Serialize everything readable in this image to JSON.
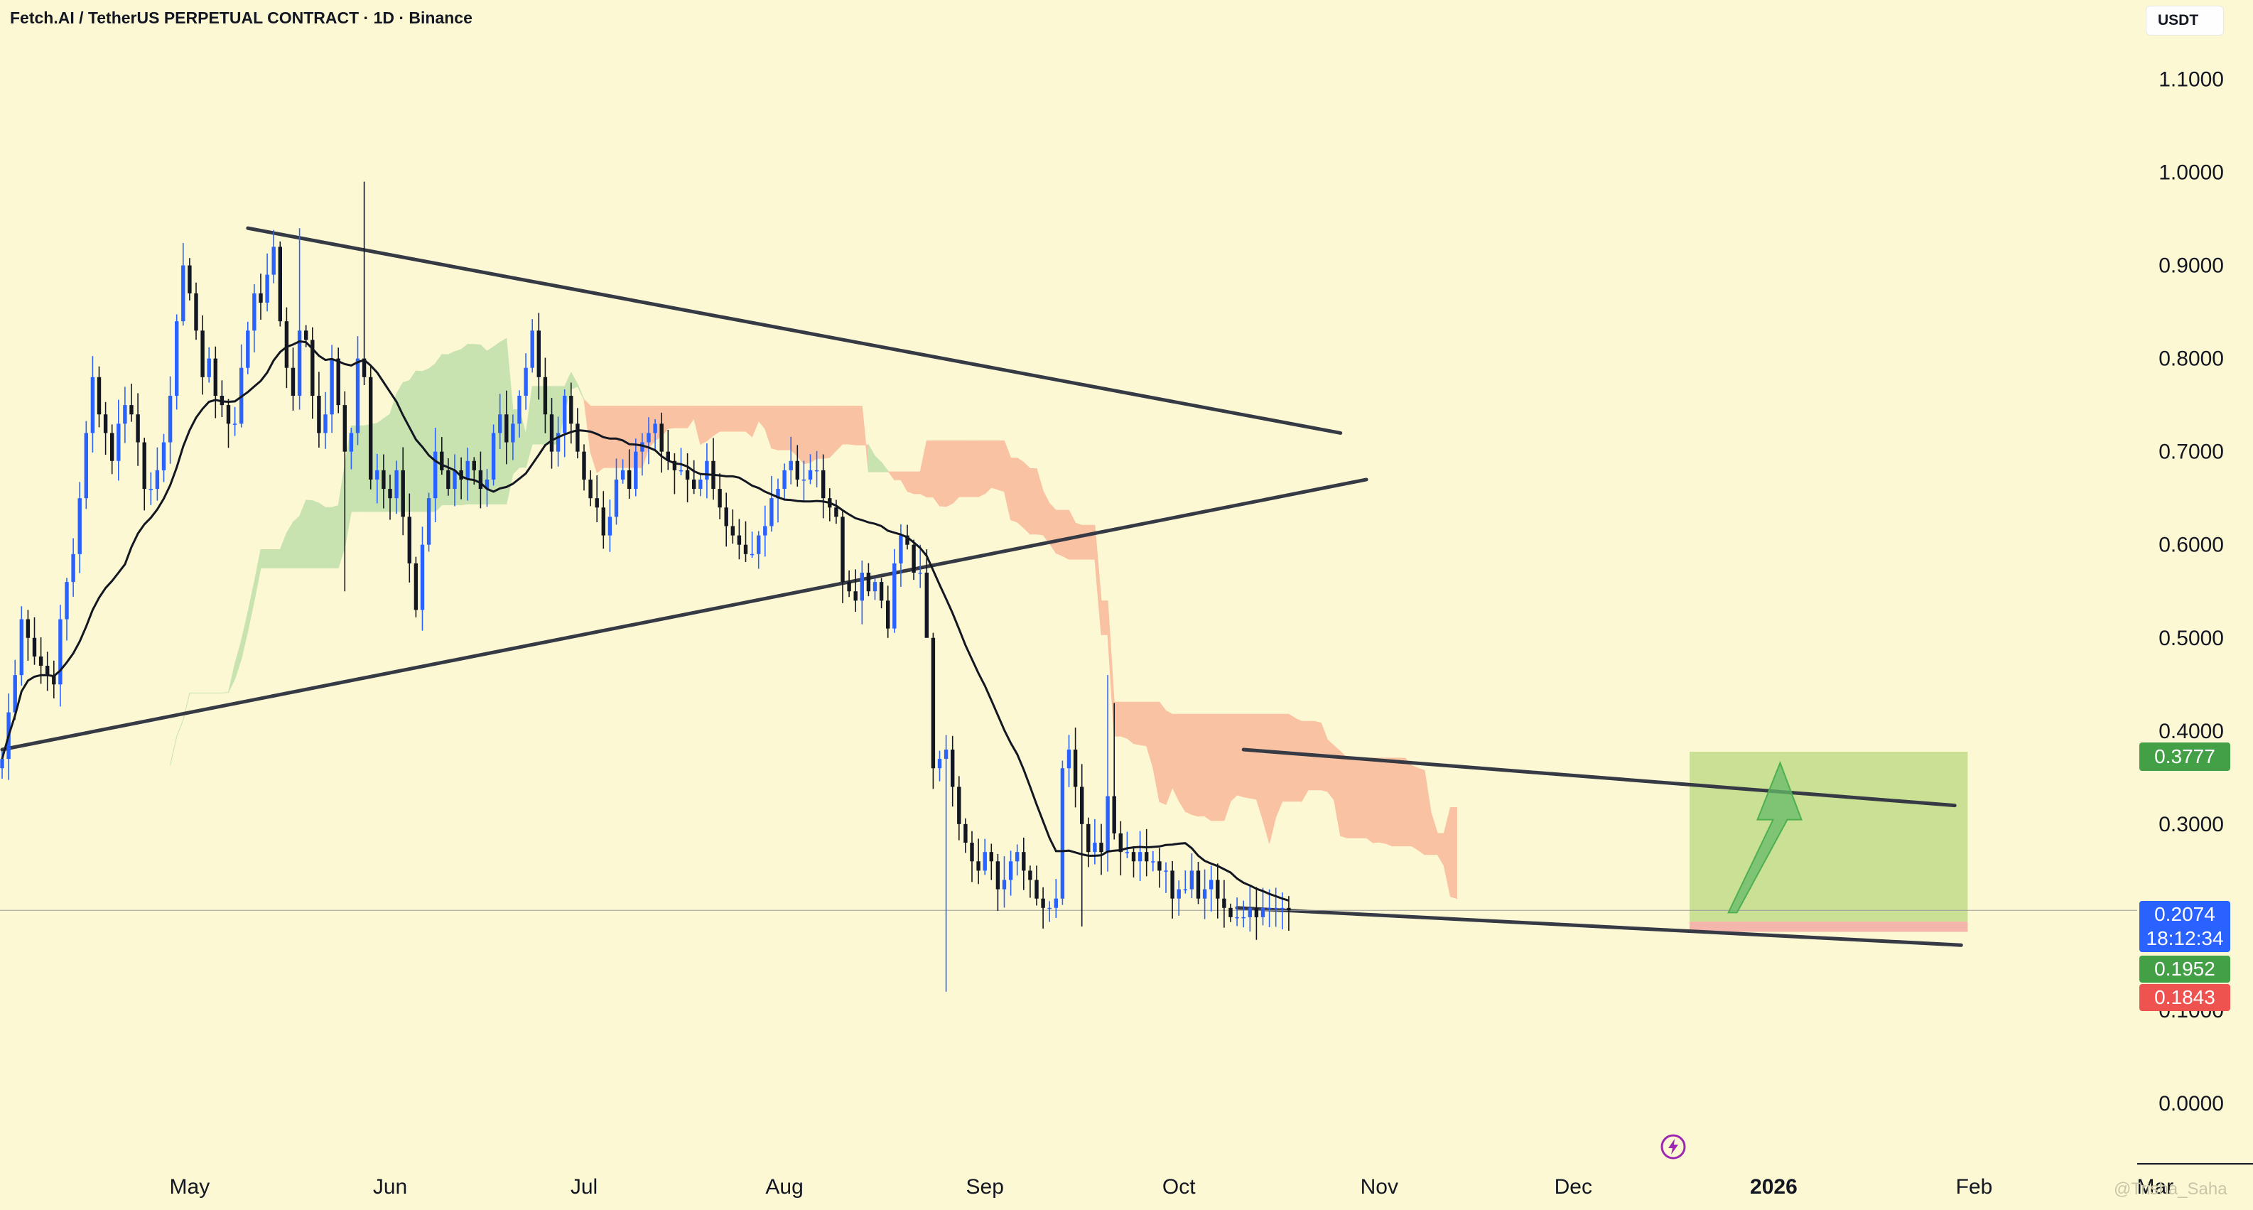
{
  "header": {
    "title": "Fetch.AI / TetherUS PERPETUAL CONTRACT · 1D · Binance",
    "currency": "USDT"
  },
  "price_tags": {
    "target": "0.3777",
    "current": "0.2074",
    "countdown": "18:12:34",
    "entry": "0.1952",
    "stop": "0.1843"
  },
  "watermark": "@Trisha_Saha",
  "colors": {
    "background": "#fdf8d4",
    "bull_candle": "#2962ff",
    "bear_candle": "#131722",
    "cloud_bull": "#c8e3b0",
    "cloud_bear": "#f9c3a3",
    "tag_green": "#43a047",
    "tag_blue": "#2962ff",
    "tag_red": "#ef5350",
    "bolt": "#9c27b0"
  },
  "icons": [
    "lightning-bolt-icon"
  ],
  "chart_data": {
    "type": "candlestick",
    "title": "Fetch.AI / TetherUS PERPETUAL CONTRACT · 1D · Binance",
    "xlabel": "",
    "ylabel": "",
    "ylim": [
      -0.05,
      1.18
    ],
    "y_ticks": [
      "1.1000",
      "1.0000",
      "0.9000",
      "0.8000",
      "0.7000",
      "0.6000",
      "0.5000",
      "0.4000",
      "0.3000",
      "0.2000",
      "0.1000",
      "0.0000"
    ],
    "y_tick_values": [
      1.1,
      1.0,
      0.9,
      0.8,
      0.7,
      0.6,
      0.5,
      0.4,
      0.3,
      0.2,
      0.1,
      0.0
    ],
    "x_ticks": [
      "May",
      "Jun",
      "Jul",
      "Aug",
      "Sep",
      "Oct",
      "Nov",
      "Dec",
      "2026",
      "Feb",
      "Mar"
    ],
    "x_tick_dates": [
      "2025-05-01",
      "2025-06-01",
      "2025-07-01",
      "2025-08-01",
      "2025-09-01",
      "2025-10-01",
      "2025-11-01",
      "2025-12-01",
      "2026-01-01",
      "2026-02-01",
      "2026-03-01"
    ],
    "bold_ticks": [
      "2026"
    ],
    "grid": false,
    "series": [
      {
        "type": "candles",
        "start_date": "2025-04-02",
        "close": [
          0.37,
          0.42,
          0.46,
          0.52,
          0.5,
          0.48,
          0.47,
          0.46,
          0.45,
          0.52,
          0.56,
          0.59,
          0.65,
          0.72,
          0.78,
          0.74,
          0.72,
          0.69,
          0.73,
          0.75,
          0.74,
          0.71,
          0.66,
          0.66,
          0.68,
          0.71,
          0.76,
          0.84,
          0.9,
          0.87,
          0.83,
          0.78,
          0.8,
          0.76,
          0.75,
          0.73,
          0.73,
          0.79,
          0.83,
          0.87,
          0.86,
          0.89,
          0.92,
          0.84,
          0.79,
          0.76,
          0.83,
          0.82,
          0.76,
          0.72,
          0.74,
          0.8,
          0.75,
          0.7,
          0.72,
          0.8,
          0.78,
          0.67,
          0.68,
          0.66,
          0.65,
          0.68,
          0.63,
          0.58,
          0.53,
          0.6,
          0.65,
          0.7,
          0.68,
          0.66,
          0.68,
          0.67,
          0.69,
          0.68,
          0.66,
          0.67,
          0.72,
          0.74,
          0.71,
          0.73,
          0.76,
          0.79,
          0.83,
          0.78,
          0.74,
          0.7,
          0.72,
          0.76,
          0.73,
          0.7,
          0.67,
          0.65,
          0.64,
          0.61,
          0.63,
          0.67,
          0.68,
          0.66,
          0.7,
          0.71,
          0.72,
          0.73,
          0.7,
          0.69,
          0.68,
          0.68,
          0.67,
          0.66,
          0.67,
          0.69,
          0.66,
          0.64,
          0.62,
          0.61,
          0.6,
          0.59,
          0.59,
          0.61,
          0.62,
          0.65,
          0.66,
          0.68,
          0.69,
          0.67,
          0.67,
          0.68,
          0.68,
          0.65,
          0.64,
          0.63,
          0.56,
          0.55,
          0.54,
          0.57,
          0.55,
          0.56,
          0.54,
          0.51,
          0.58,
          0.61,
          0.6,
          0.57,
          0.57,
          0.5,
          0.36,
          0.37,
          0.38,
          0.34,
          0.3,
          0.28,
          0.26,
          0.25,
          0.27,
          0.26,
          0.23,
          0.24,
          0.26,
          0.27,
          0.25,
          0.24,
          0.22,
          0.21,
          0.21,
          0.22,
          0.36,
          0.38,
          0.34,
          0.3,
          0.27,
          0.28,
          0.27,
          0.33,
          0.29,
          0.27,
          0.27,
          0.26,
          0.27,
          0.26,
          0.26,
          0.25,
          0.25,
          0.22,
          0.23,
          0.23,
          0.25,
          0.22,
          0.23,
          0.24,
          0.22,
          0.21,
          0.2,
          0.2,
          0.2,
          0.21,
          0.2,
          0.21,
          0.21,
          0.21,
          0.21,
          0.2074
        ]
      },
      {
        "type": "line",
        "name": "",
        "note": "moving average"
      },
      {
        "type": "area",
        "name": "",
        "note": "ichimoku cloud"
      }
    ],
    "trendlines": [
      {
        "from": [
          "2025-05-10",
          0.94
        ],
        "to": [
          "2025-10-26",
          0.72
        ]
      },
      {
        "from": [
          "2025-04-02",
          0.38
        ],
        "to": [
          "2025-10-30",
          0.67
        ]
      },
      {
        "from": [
          "2025-10-11",
          0.38
        ],
        "to": [
          "2026-01-29",
          0.32
        ]
      },
      {
        "from": [
          "2025-10-10",
          0.21
        ],
        "to": [
          "2026-01-30",
          0.17
        ]
      }
    ],
    "position": {
      "entry": 0.1952,
      "stop": 0.1843,
      "target": 0.3777,
      "from": "2025-12-19",
      "to": "2026-01-31"
    }
  }
}
